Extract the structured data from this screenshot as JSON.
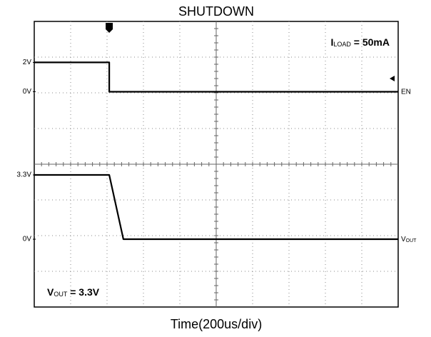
{
  "chart_data": {
    "type": "line",
    "title": "SHUTDOWN",
    "x_label": "Time(200us/div)",
    "xlim": [
      0,
      2000
    ],
    "trigger": 412,
    "annotations": [
      {
        "main": "I",
        "sub": "LOAD",
        "rest": " = 50mA"
      },
      {
        "main": "V",
        "sub": "OUT",
        "rest": " = 3.3V"
      }
    ],
    "series": [
      {
        "name": "EN",
        "color": "#000000",
        "ylim": [
          -14.7,
          4.8
        ],
        "yticks": [
          {
            "value": 2,
            "label": "2V"
          },
          {
            "value": 0,
            "label": "0V"
          }
        ],
        "x": [
          0,
          412,
          412,
          2000
        ],
        "values": [
          2,
          2,
          0,
          0
        ]
      },
      {
        "name": "V",
        "name_sub": "OUT",
        "color": "#000000",
        "ylim": [
          -3.48,
          11.18
        ],
        "yticks": [
          {
            "value": 3.3,
            "label": "3.3V"
          },
          {
            "value": 0,
            "label": "0V"
          }
        ],
        "x": [
          0,
          412,
          490,
          2000
        ],
        "values": [
          3.3,
          3.3,
          0,
          0
        ]
      }
    ]
  }
}
